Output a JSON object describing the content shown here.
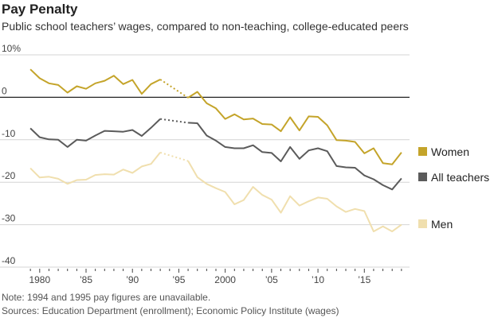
{
  "header": {
    "title": "Pay Penalty",
    "subtitle": "Public school teachers’ wages, compared to non-teaching, college-educated peers"
  },
  "notes": {
    "note": "Note: 1994 and 1995 pay figures are unavailable.",
    "sources": "Sources: Education Department (enrollment); Economic Policy Institute (wages)"
  },
  "chart_data": {
    "type": "line",
    "title": "Pay Penalty",
    "subtitle": "Public school teachers’ wages, compared to non-teaching, college-educated peers",
    "xlabel": "",
    "ylabel": "",
    "xlim": [
      1978.3,
      2019.7
    ],
    "ylim": [
      -40,
      10
    ],
    "y_ticks": [
      10,
      0,
      -10,
      -20,
      -30,
      -40
    ],
    "y_tick_labels": [
      "10%",
      "0",
      "-10",
      "-20",
      "-30",
      "-40"
    ],
    "x_ticks": [
      1980,
      1985,
      1990,
      1995,
      2000,
      2005,
      2010,
      2015
    ],
    "x_tick_labels": [
      "1980",
      "’85",
      "’90",
      "’95",
      "2000",
      "’05",
      "’10",
      "’15"
    ],
    "grid": "horizontal",
    "legend_position": "right",
    "gap_years": [
      1994,
      1995
    ],
    "series": [
      {
        "name": "Women",
        "color": "#c4a42a",
        "x": [
          1979,
          1980,
          1981,
          1982,
          1983,
          1984,
          1985,
          1986,
          1987,
          1988,
          1989,
          1990,
          1991,
          1992,
          1993,
          1996,
          1997,
          1998,
          1999,
          2000,
          2001,
          2002,
          2003,
          2004,
          2005,
          2006,
          2007,
          2008,
          2009,
          2010,
          2011,
          2012,
          2013,
          2014,
          2015,
          2016,
          2017,
          2018,
          2019
        ],
        "y": [
          6.6,
          4.5,
          3.3,
          2.9,
          1.1,
          2.6,
          2.0,
          3.3,
          3.9,
          5.1,
          3.1,
          4.1,
          0.8,
          3.1,
          4.2,
          -0.1,
          1.3,
          -1.4,
          -2.6,
          -5.1,
          -4.0,
          -5.2,
          -5.0,
          -6.3,
          -6.4,
          -8.0,
          -4.7,
          -7.8,
          -4.5,
          -4.6,
          -6.6,
          -10.1,
          -10.2,
          -10.5,
          -13.2,
          -12.0,
          -15.5,
          -15.8,
          -13.0
        ]
      },
      {
        "name": "All teachers",
        "color": "#5b5b5b",
        "x": [
          1979,
          1980,
          1981,
          1982,
          1983,
          1984,
          1985,
          1986,
          1987,
          1988,
          1989,
          1990,
          1991,
          1992,
          1993,
          1996,
          1997,
          1998,
          1999,
          2000,
          2001,
          2002,
          2003,
          2004,
          2005,
          2006,
          2007,
          2008,
          2009,
          2010,
          2011,
          2012,
          2013,
          2014,
          2015,
          2016,
          2017,
          2018,
          2019
        ],
        "y": [
          -7.3,
          -9.4,
          -9.9,
          -10.0,
          -11.7,
          -10.0,
          -10.2,
          -9.0,
          -7.9,
          -8.0,
          -8.1,
          -7.7,
          -9.1,
          -7.2,
          -5.1,
          -6.0,
          -6.1,
          -9.0,
          -10.2,
          -11.7,
          -12.0,
          -12.0,
          -11.3,
          -12.9,
          -13.1,
          -15.1,
          -11.7,
          -14.5,
          -12.5,
          -12.0,
          -12.7,
          -16.2,
          -16.5,
          -16.6,
          -18.4,
          -19.3,
          -20.7,
          -21.7,
          -19.1
        ]
      },
      {
        "name": "Men",
        "color": "#f0dfae",
        "x": [
          1979,
          1980,
          1981,
          1982,
          1983,
          1984,
          1985,
          1986,
          1987,
          1988,
          1989,
          1990,
          1991,
          1992,
          1993,
          1996,
          1997,
          1998,
          1999,
          2000,
          2001,
          2002,
          2003,
          2004,
          2005,
          2006,
          2007,
          2008,
          2009,
          2010,
          2011,
          2012,
          2013,
          2014,
          2015,
          2016,
          2017,
          2018,
          2019
        ],
        "y": [
          -16.7,
          -18.9,
          -18.7,
          -19.2,
          -20.4,
          -19.5,
          -19.4,
          -18.3,
          -18.1,
          -18.2,
          -17.0,
          -17.8,
          -16.3,
          -15.7,
          -13.0,
          -15.0,
          -18.8,
          -20.4,
          -21.4,
          -22.3,
          -25.2,
          -24.2,
          -21.1,
          -23.0,
          -24.1,
          -27.2,
          -23.3,
          -25.5,
          -24.5,
          -23.6,
          -23.9,
          -25.7,
          -27.0,
          -26.3,
          -26.8,
          -31.6,
          -30.4,
          -31.6,
          -30.0
        ]
      }
    ]
  }
}
